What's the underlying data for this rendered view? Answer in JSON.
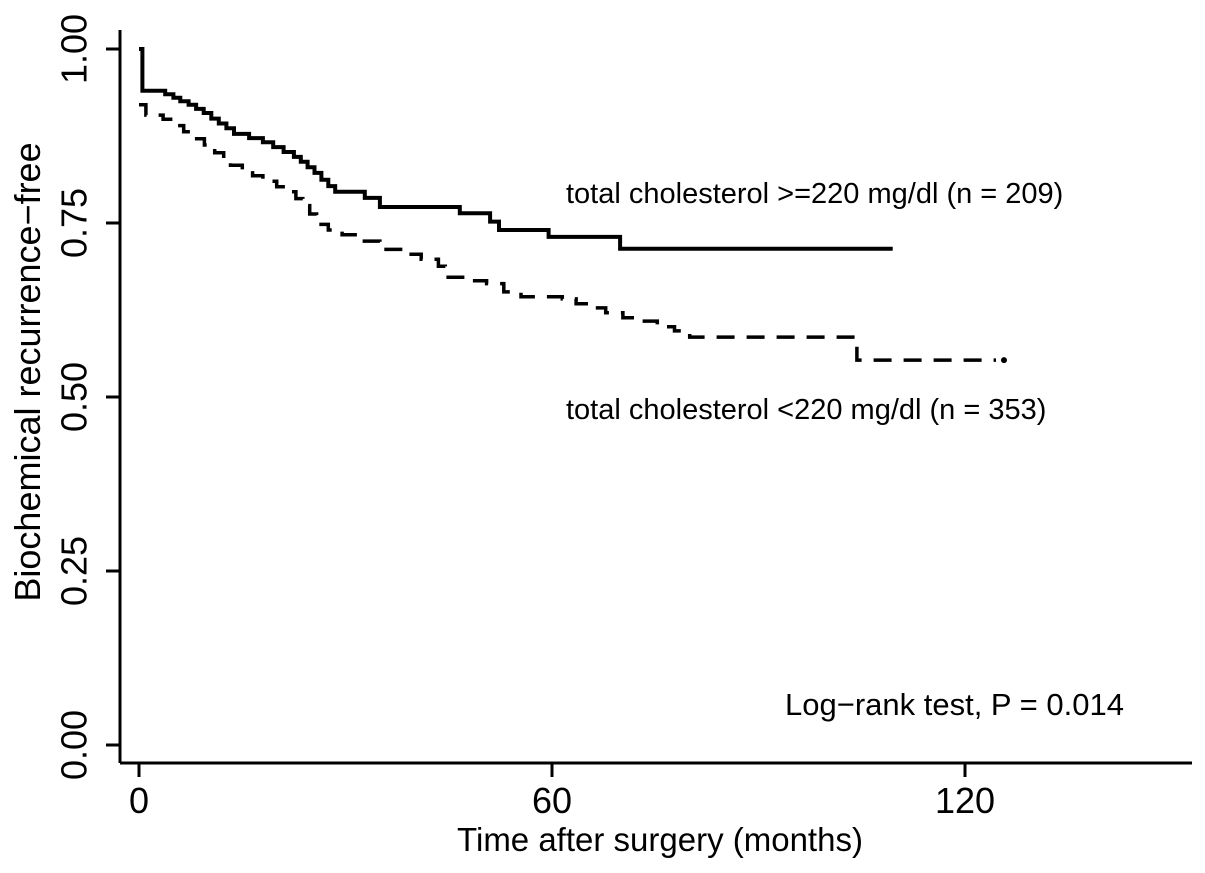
{
  "figure": {
    "background_color": "#ffffff",
    "foreground_color": "#000000"
  },
  "chart_data": {
    "type": "line",
    "subtype": "kaplan-meier-step",
    "title": "",
    "xlabel": "Time after surgery (months)",
    "ylabel": "Biochemical recurrence−free",
    "xlim": [
      0,
      153
    ],
    "ylim": [
      0.0,
      1.0
    ],
    "grid": false,
    "legend_position": "inline-annotations",
    "xticks": {
      "values": [
        0,
        60,
        120
      ],
      "labels": [
        "0",
        "60",
        "120"
      ]
    },
    "yticks": {
      "values": [
        0.0,
        0.25,
        0.5,
        0.75,
        1.0
      ],
      "labels": [
        "0.00",
        "0.25",
        "0.50",
        "0.75",
        "1.00"
      ]
    },
    "annotations": {
      "pvalue": "Log−rank test, P = 0.014"
    },
    "series": [
      {
        "name": "total cholesterol >=220 mg/dl (n = 209)",
        "n": 209,
        "line_style": "solid",
        "end_dot": false,
        "points": [
          [
            0,
            1.0
          ],
          [
            0.5,
            0.94
          ],
          [
            3.8,
            0.935
          ],
          [
            5,
            0.93
          ],
          [
            6,
            0.925
          ],
          [
            7.2,
            0.92
          ],
          [
            8.3,
            0.914
          ],
          [
            9.4,
            0.908
          ],
          [
            10.5,
            0.9
          ],
          [
            11.6,
            0.893
          ],
          [
            12.7,
            0.886
          ],
          [
            13.8,
            0.878
          ],
          [
            16,
            0.872
          ],
          [
            18,
            0.866
          ],
          [
            19.5,
            0.859
          ],
          [
            21,
            0.852
          ],
          [
            22.5,
            0.845
          ],
          [
            23.5,
            0.838
          ],
          [
            24.5,
            0.83
          ],
          [
            25.5,
            0.822
          ],
          [
            26.5,
            0.812
          ],
          [
            27.5,
            0.803
          ],
          [
            28.5,
            0.795
          ],
          [
            32.8,
            0.786
          ],
          [
            35,
            0.773
          ],
          [
            46.6,
            0.764
          ],
          [
            51,
            0.752
          ],
          [
            52.3,
            0.74
          ],
          [
            59.5,
            0.73
          ],
          [
            69.9,
            0.713
          ],
          [
            109.5,
            0.713
          ]
        ]
      },
      {
        "name": "total cholesterol <220 mg/dl (n = 353)",
        "n": 353,
        "line_style": "dashed",
        "end_dot": true,
        "points": [
          [
            0,
            0.92
          ],
          [
            1,
            0.905
          ],
          [
            3.5,
            0.899
          ],
          [
            5,
            0.89
          ],
          [
            6.5,
            0.881
          ],
          [
            8,
            0.871
          ],
          [
            9.5,
            0.862
          ],
          [
            11,
            0.851
          ],
          [
            12.3,
            0.841
          ],
          [
            13.3,
            0.833
          ],
          [
            15,
            0.825
          ],
          [
            16.5,
            0.818
          ],
          [
            18,
            0.81
          ],
          [
            20,
            0.802
          ],
          [
            21.5,
            0.795
          ],
          [
            22.8,
            0.785
          ],
          [
            23.8,
            0.775
          ],
          [
            24.8,
            0.763
          ],
          [
            25.8,
            0.748
          ],
          [
            27.5,
            0.74
          ],
          [
            29.5,
            0.733
          ],
          [
            32,
            0.724
          ],
          [
            35,
            0.712
          ],
          [
            38,
            0.705
          ],
          [
            41,
            0.698
          ],
          [
            43.5,
            0.688
          ],
          [
            44.5,
            0.672
          ],
          [
            48,
            0.667
          ],
          [
            50.5,
            0.663
          ],
          [
            53,
            0.651
          ],
          [
            55.5,
            0.644
          ],
          [
            61.5,
            0.641
          ],
          [
            63.5,
            0.634
          ],
          [
            65.5,
            0.628
          ],
          [
            67.8,
            0.621
          ],
          [
            70.3,
            0.614
          ],
          [
            72.8,
            0.609
          ],
          [
            75.3,
            0.601
          ],
          [
            77.8,
            0.595
          ],
          [
            80,
            0.586
          ],
          [
            104.3,
            0.553
          ],
          [
            124.5,
            0.553
          ]
        ]
      }
    ]
  }
}
